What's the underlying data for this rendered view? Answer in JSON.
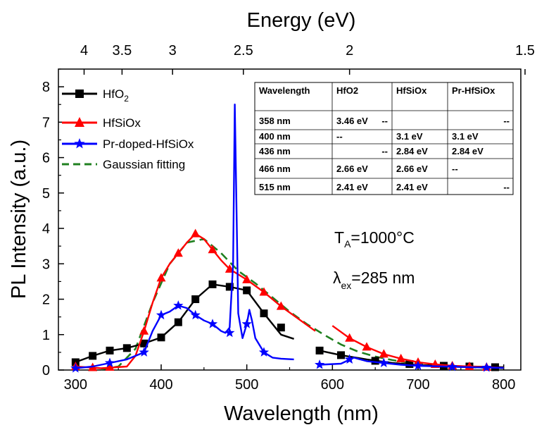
{
  "chart_data": {
    "type": "line",
    "xlabel": "Wavelength (nm)",
    "ylabel": "PL Intensity (a.u.)",
    "top_xlabel": "Energy (eV)",
    "xlim": [
      280,
      820
    ],
    "ylim": [
      0,
      8.5
    ],
    "x_ticks": [
      "300",
      "400",
      "500",
      "600",
      "700",
      "800"
    ],
    "y_ticks": [
      "0",
      "1",
      "2",
      "3",
      "4",
      "5",
      "6",
      "7",
      "8"
    ],
    "top_ticks": [
      {
        "label": "4",
        "nm": 310
      },
      {
        "label": "3.5",
        "nm": 354.3
      },
      {
        "label": "3",
        "nm": 413.3
      },
      {
        "label": "2.5",
        "nm": 496
      },
      {
        "label": "2",
        "nm": 620
      },
      {
        "label": "1.5",
        "nm": 826.7
      }
    ],
    "series": [
      {
        "name_base": "HfO",
        "name_sub": "2",
        "color": "#000000",
        "marker": "square",
        "x": [
          300,
          320,
          340,
          360,
          380,
          400,
          420,
          440,
          460,
          480,
          500,
          520,
          540,
          555,
          null,
          585,
          610,
          640,
          670,
          700,
          730,
          760,
          800
        ],
        "y": [
          0.22,
          0.4,
          0.55,
          0.62,
          0.75,
          0.92,
          1.35,
          2.0,
          2.42,
          2.35,
          2.25,
          1.6,
          1.0,
          0.88,
          null,
          0.55,
          0.42,
          0.3,
          0.2,
          0.14,
          0.12,
          0.1,
          0.08
        ],
        "markers_x": [
          300,
          320,
          340,
          360,
          380,
          400,
          420,
          440,
          460,
          480,
          500,
          520,
          540,
          585,
          610,
          650,
          690,
          730,
          760,
          790
        ],
        "markers_y": [
          0.22,
          0.4,
          0.55,
          0.62,
          0.75,
          0.92,
          1.35,
          2.0,
          2.42,
          2.35,
          2.25,
          1.6,
          1.2,
          0.55,
          0.42,
          0.26,
          0.17,
          0.12,
          0.1,
          0.08
        ]
      },
      {
        "name": "HfSiOx",
        "color": "#ff0000",
        "marker": "triangle",
        "x": [
          300,
          330,
          360,
          370,
          380,
          390,
          400,
          410,
          420,
          430,
          440,
          450,
          460,
          470,
          480,
          500,
          520,
          540,
          560,
          580,
          null,
          600,
          620,
          640,
          660,
          680,
          700,
          720,
          740,
          760,
          780,
          800
        ],
        "y": [
          0.1,
          0.05,
          0.1,
          0.4,
          1.1,
          1.9,
          2.6,
          3.0,
          3.3,
          3.6,
          3.85,
          3.7,
          3.4,
          3.1,
          2.85,
          2.55,
          2.2,
          1.8,
          1.45,
          1.1,
          null,
          1.25,
          0.9,
          0.65,
          0.45,
          0.32,
          0.22,
          0.16,
          0.12,
          0.1,
          0.08,
          0.06
        ],
        "markers_x": [
          300,
          320,
          340,
          380,
          400,
          420,
          440,
          460,
          480,
          500,
          520,
          540,
          620,
          640,
          660,
          680,
          700,
          720,
          740,
          760,
          780
        ],
        "markers_y": [
          0.1,
          0.07,
          0.08,
          1.1,
          2.6,
          3.3,
          3.85,
          3.4,
          2.85,
          2.55,
          2.2,
          1.8,
          0.9,
          0.65,
          0.45,
          0.32,
          0.22,
          0.16,
          0.12,
          0.1,
          0.08
        ]
      },
      {
        "name": "Pr-doped-HfSiOx",
        "color": "#0000ff",
        "marker": "star",
        "x": [
          300,
          320,
          340,
          360,
          380,
          390,
          400,
          410,
          420,
          430,
          440,
          450,
          460,
          470,
          475,
          480,
          484,
          486,
          488,
          490,
          495,
          500,
          503,
          506,
          510,
          520,
          530,
          540,
          555,
          null,
          585,
          610,
          625,
          640,
          660,
          680,
          700,
          730,
          760,
          800
        ],
        "y": [
          0.05,
          0.1,
          0.2,
          0.3,
          0.5,
          1.1,
          1.55,
          1.65,
          1.82,
          1.75,
          1.55,
          1.4,
          1.3,
          1.1,
          1.05,
          1.2,
          3.0,
          7.5,
          4.5,
          1.6,
          0.9,
          1.3,
          1.7,
          1.4,
          0.9,
          0.5,
          0.35,
          0.32,
          0.3,
          null,
          0.15,
          0.18,
          0.35,
          0.25,
          0.2,
          0.15,
          0.12,
          0.1,
          0.08,
          0.06
        ],
        "markers_x": [
          300,
          340,
          380,
          400,
          420,
          440,
          460,
          480,
          500,
          520,
          585,
          620,
          660,
          700,
          740,
          780
        ],
        "markers_y": [
          0.05,
          0.2,
          0.5,
          1.55,
          1.82,
          1.55,
          1.3,
          1.05,
          1.3,
          0.5,
          0.15,
          0.3,
          0.2,
          0.12,
          0.09,
          0.07
        ]
      },
      {
        "name": "Gaussian fitting",
        "color": "#208020",
        "marker": "none",
        "dashed": true,
        "x": [
          330,
          350,
          370,
          390,
          410,
          430,
          450,
          470,
          490,
          510,
          530,
          550,
          570,
          590,
          610,
          630,
          650,
          670,
          690,
          710,
          730,
          750,
          770,
          790,
          800
        ],
        "y": [
          0.02,
          0.1,
          0.6,
          1.9,
          3.0,
          3.6,
          3.7,
          3.3,
          2.8,
          2.45,
          2.05,
          1.65,
          1.3,
          1.0,
          0.72,
          0.52,
          0.38,
          0.28,
          0.2,
          0.15,
          0.11,
          0.09,
          0.07,
          0.06,
          0.05
        ]
      }
    ],
    "table": {
      "headers": [
        "Wavelength",
        "HfO2",
        "HfSiOx",
        "Pr-HfSiOx"
      ],
      "rows": [
        [
          "358 nm",
          "3.46 eV",
          "--",
          "--"
        ],
        [
          "400 nm",
          "--",
          "3.1 eV",
          "3.1 eV"
        ],
        [
          "436 nm",
          "--",
          "2.84 eV",
          "2.84 eV"
        ],
        [
          "466 nm",
          "2.66 eV",
          "2.66 eV",
          "--"
        ],
        [
          "515 nm",
          "2.41 eV",
          "2.41 eV",
          "--"
        ]
      ]
    },
    "annotations": {
      "ta_base": "T",
      "ta_sub": "A",
      "ta_rest": "=1000°C",
      "lam_base": "λ",
      "lam_sub": "ex",
      "lam_rest": "=285 nm"
    },
    "legend_position": "top-left",
    "grid": false
  }
}
